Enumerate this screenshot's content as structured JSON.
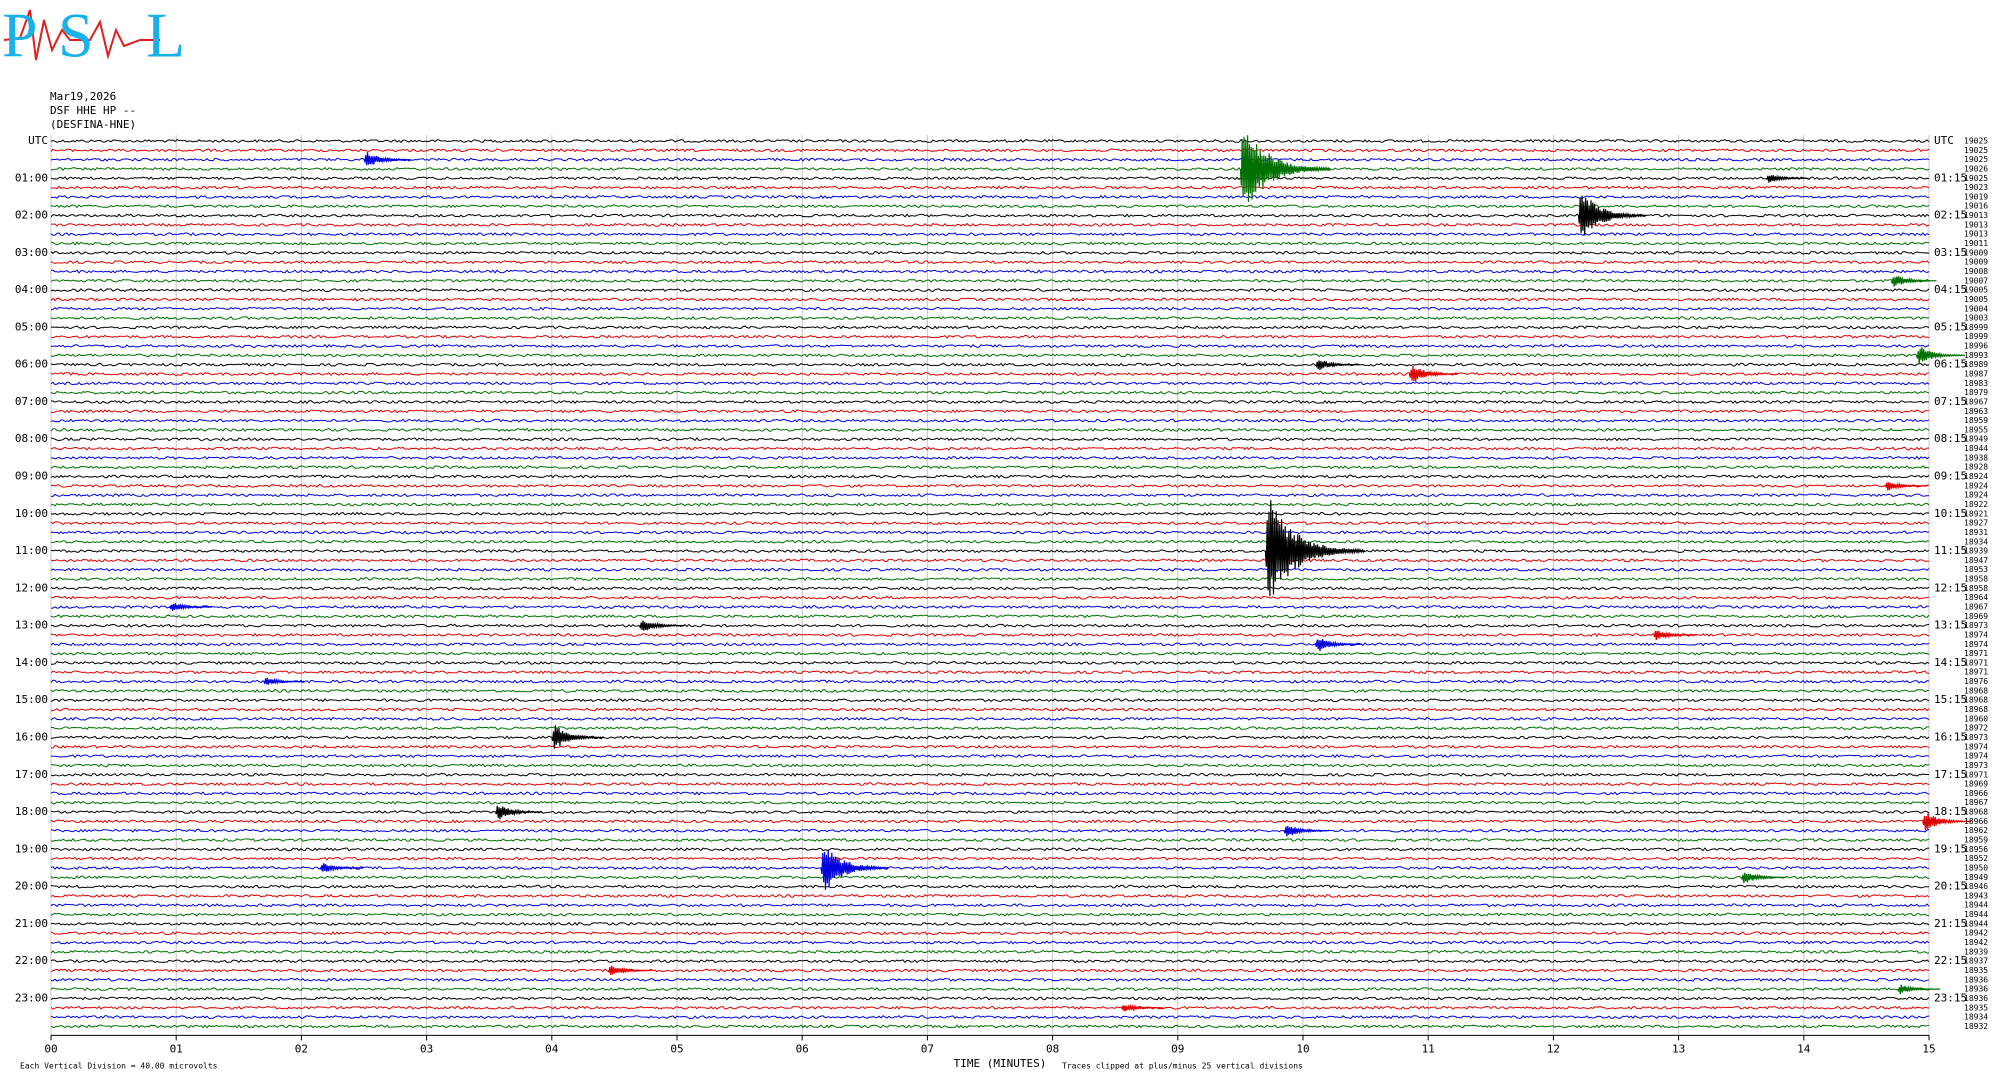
{
  "header": {
    "logo": [
      "P",
      "S",
      "L"
    ],
    "date": "Mar19,2026",
    "station": "DSF HHE HP --",
    "channel": "(DESFINA-HNE)"
  },
  "axes": {
    "left_labels": [
      "UTC",
      "01:00",
      "02:00",
      "03:00",
      "04:00",
      "05:00",
      "06:00",
      "07:00",
      "08:00",
      "09:00",
      "10:00",
      "11:00",
      "12:00",
      "13:00",
      "14:00",
      "15:00",
      "16:00",
      "17:00",
      "18:00",
      "19:00",
      "20:00",
      "21:00",
      "22:00",
      "23:00"
    ],
    "right_labels": [
      "UTC",
      "01:15",
      "02:15",
      "03:15",
      "04:15",
      "05:15",
      "06:15",
      "07:15",
      "08:15",
      "09:15",
      "10:15",
      "11:15",
      "12:15",
      "13:15",
      "14:15",
      "15:15",
      "16:15",
      "17:15",
      "18:15",
      "19:15",
      "20:15",
      "21:15",
      "22:15",
      "23:15"
    ],
    "minute_ticks": [
      "00",
      "01",
      "02",
      "03",
      "04",
      "05",
      "06",
      "07",
      "08",
      "09",
      "10",
      "11",
      "12",
      "13",
      "14",
      "15"
    ],
    "x_title": "TIME (MINUTES)"
  },
  "footer": {
    "division": "Each Vertical Division =   40.00 microvolts",
    "clip": "Traces clipped at plus/minus 25 vertical divisions"
  },
  "traces": {
    "colors": [
      "#000000",
      "#e00000",
      "#0000e0",
      "#007000"
    ],
    "right_values": [
      19025,
      19025,
      19025,
      19026,
      19025,
      19023,
      19019,
      19016,
      19013,
      19013,
      19013,
      19011,
      19009,
      19009,
      19008,
      19007,
      19005,
      19005,
      19004,
      19003,
      18999,
      18999,
      18996,
      18993,
      18989,
      18987,
      18983,
      18979,
      18967,
      18963,
      18959,
      18955,
      18949,
      18944,
      18938,
      18928,
      18924,
      18924,
      18924,
      18922,
      18921,
      18927,
      18931,
      18934,
      18939,
      18947,
      18953,
      18958,
      18958,
      18964,
      18967,
      18969,
      18973,
      18974,
      18974,
      18971,
      18971,
      18971,
      18976,
      18968,
      18968,
      18968,
      18960,
      18972,
      18973,
      18974,
      18974,
      18973,
      18971,
      18969,
      18966,
      18967,
      18968,
      18966,
      18962,
      18959,
      18956,
      18952,
      18950,
      18949,
      18946,
      18943,
      18944,
      18944,
      18944,
      18942,
      18942,
      18939,
      18937,
      18935,
      18936,
      18936,
      18936,
      18935,
      18934,
      18932
    ],
    "events": [
      {
        "trace": 3,
        "minute": 9.5,
        "amplitude": 6
      },
      {
        "trace": 2,
        "minute": 2.5,
        "amplitude": 1.2
      },
      {
        "trace": 8,
        "minute": 12.2,
        "amplitude": 3.5
      },
      {
        "trace": 44,
        "minute": 9.7,
        "amplitude": 7
      },
      {
        "trace": 64,
        "minute": 4.0,
        "amplitude": 1.8
      },
      {
        "trace": 78,
        "minute": 6.15,
        "amplitude": 3.5
      },
      {
        "trace": 72,
        "minute": 3.55,
        "amplitude": 1.2
      },
      {
        "trace": 73,
        "minute": 14.95,
        "amplitude": 1.4
      },
      {
        "trace": 23,
        "minute": 14.9,
        "amplitude": 1.4
      },
      {
        "trace": 25,
        "minute": 10.85,
        "amplitude": 1.4
      },
      {
        "trace": 24,
        "minute": 10.1,
        "amplitude": 0.9
      },
      {
        "trace": 54,
        "minute": 10.1,
        "amplitude": 1.1
      },
      {
        "trace": 79,
        "minute": 13.5,
        "amplitude": 1
      },
      {
        "trace": 78,
        "minute": 2.15,
        "amplitude": 0.8
      },
      {
        "trace": 74,
        "minute": 9.85,
        "amplitude": 1
      },
      {
        "trace": 52,
        "minute": 4.7,
        "amplitude": 1
      },
      {
        "trace": 50,
        "minute": 0.95,
        "amplitude": 0.7
      },
      {
        "trace": 53,
        "minute": 12.8,
        "amplitude": 0.8
      },
      {
        "trace": 89,
        "minute": 4.45,
        "amplitude": 0.8
      },
      {
        "trace": 4,
        "minute": 13.7,
        "amplitude": 0.7
      },
      {
        "trace": 15,
        "minute": 14.7,
        "amplitude": 1
      },
      {
        "trace": 93,
        "minute": 8.55,
        "amplitude": 0.6
      },
      {
        "trace": 91,
        "minute": 14.75,
        "amplitude": 0.7
      },
      {
        "trace": 37,
        "minute": 14.65,
        "amplitude": 0.7
      },
      {
        "trace": 58,
        "minute": 1.7,
        "amplitude": 0.6
      }
    ]
  }
}
